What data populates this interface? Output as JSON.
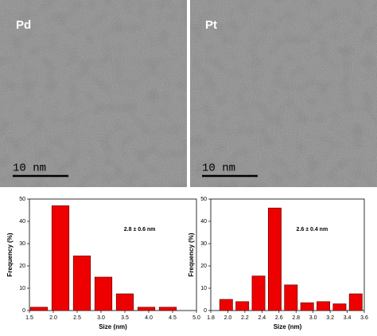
{
  "images": [
    {
      "label": "Pd",
      "scale_bar": "10 nm"
    },
    {
      "label": "Pt",
      "scale_bar": "10 nm"
    }
  ],
  "chart_data": [
    {
      "type": "bar",
      "x_label": "Size (nm)",
      "y_label": "Frequency (%)",
      "annotation": "2.8 ± 0.6 nm",
      "color": "#ee0000",
      "x": [
        1.7,
        2.15,
        2.6,
        3.05,
        3.5,
        3.95,
        4.4
      ],
      "values": [
        1.5,
        47,
        24.5,
        15,
        7.5,
        1.5,
        1.5
      ],
      "xlim": [
        1.5,
        5.0
      ],
      "xticks": [
        {
          "value": 1.5,
          "label": "1.5"
        },
        {
          "value": 2.0,
          "label": "2.0"
        },
        {
          "value": 2.5,
          "label": "2.5"
        },
        {
          "value": 3.0,
          "label": "3.0"
        },
        {
          "value": 3.5,
          "label": "3.5"
        },
        {
          "value": 4.0,
          "label": "4.0"
        },
        {
          "value": 4.5,
          "label": "4.5"
        },
        {
          "value": 5.0,
          "label": "5.0"
        }
      ],
      "ylim": [
        0,
        50
      ],
      "yticks": [
        0,
        10,
        20,
        30,
        40,
        50
      ]
    },
    {
      "type": "bar",
      "x_label": "Size (nm)",
      "y_label": "Frequency (%)",
      "annotation": "2.6 ± 0.4 nm",
      "color": "#ee0000",
      "x": [
        1.98,
        2.17,
        2.36,
        2.55,
        2.74,
        2.93,
        3.12,
        3.31,
        3.5
      ],
      "values": [
        5,
        4,
        15.5,
        46,
        11.5,
        3.5,
        4,
        3,
        7.5
      ],
      "xlim": [
        1.8,
        3.6
      ],
      "xticks": [
        {
          "value": 1.8,
          "label": "1.8"
        },
        {
          "value": 2.0,
          "label": "2.0"
        },
        {
          "value": 2.2,
          "label": "2.2"
        },
        {
          "value": 2.4,
          "label": "2.4"
        },
        {
          "value": 2.6,
          "label": "2.6"
        },
        {
          "value": 2.8,
          "label": "2.8"
        },
        {
          "value": 3.0,
          "label": "3.0"
        },
        {
          "value": 3.2,
          "label": "3.2"
        },
        {
          "value": 3.4,
          "label": "3.4"
        },
        {
          "value": 3.6,
          "label": "3.6"
        }
      ],
      "ylim": [
        0,
        50
      ],
      "yticks": [
        0,
        10,
        20,
        30,
        40,
        50
      ]
    }
  ]
}
